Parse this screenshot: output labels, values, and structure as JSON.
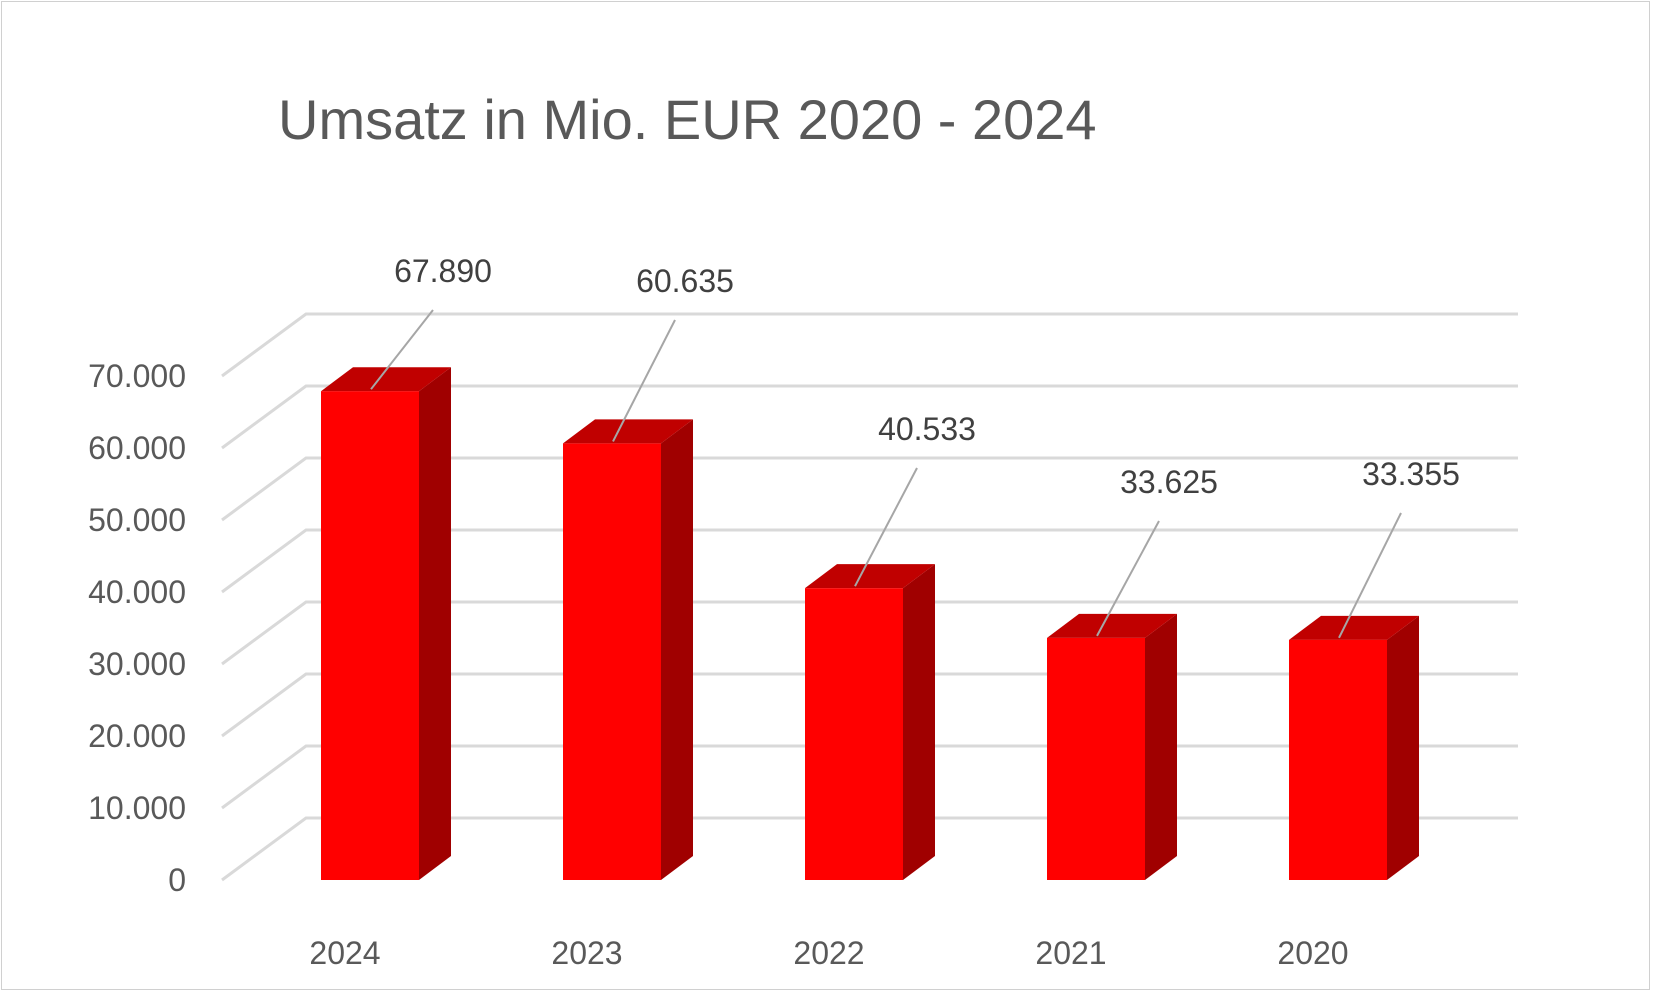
{
  "chart_data": {
    "type": "bar",
    "title": "Umsatz in Mio. EUR 2020 - 2024",
    "xlabel": "",
    "ylabel": "",
    "categories": [
      "2024",
      "2023",
      "2022",
      "2021",
      "2020"
    ],
    "values": [
      67890,
      60635,
      40533,
      33625,
      33355
    ],
    "value_labels": [
      "67.890",
      "60.635",
      "40.533",
      "33.625",
      "33.355"
    ],
    "ylim": [
      0,
      70000
    ],
    "yticks": [
      0,
      10000,
      20000,
      30000,
      40000,
      50000,
      60000,
      70000
    ],
    "ytick_labels": [
      "0",
      "10.000",
      "20.000",
      "30.000",
      "40.000",
      "50.000",
      "60.000",
      "70.000"
    ],
    "grid": true,
    "style": "3d-column",
    "colors": {
      "bar_front": "#ff0000",
      "bar_top": "#c00000",
      "bar_side": "#a00000",
      "gridline": "#d9d9d9",
      "leader_line": "#a6a6a6",
      "text": "#595959"
    }
  }
}
